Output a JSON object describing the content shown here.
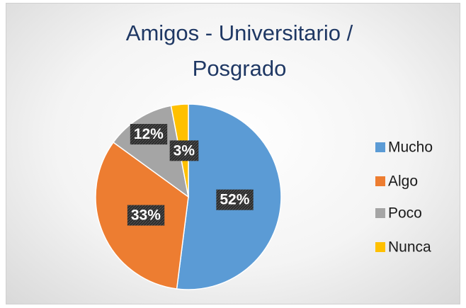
{
  "chart_data": {
    "type": "pie",
    "title": "Amigos - Universitario / Posgrado",
    "categories": [
      "Mucho",
      "Algo",
      "Poco",
      "Nunca"
    ],
    "values": [
      52,
      33,
      12,
      3
    ],
    "value_labels": [
      "52%",
      "33%",
      "12%",
      "3%"
    ],
    "colors": [
      "#5b9bd5",
      "#ed7d31",
      "#a5a5a5",
      "#ffc000"
    ],
    "legend": "right"
  }
}
